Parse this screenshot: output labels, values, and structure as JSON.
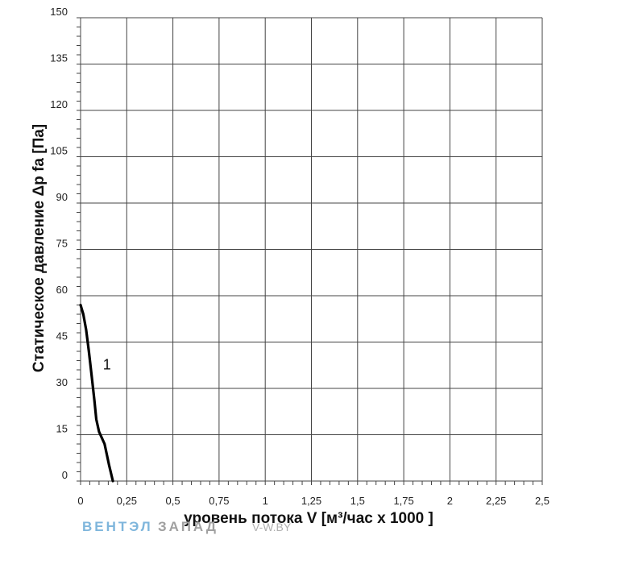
{
  "chart_data": {
    "type": "line",
    "title": "",
    "xlabel": "уровень потока  V [м³/час х 1000 ]",
    "ylabel": "Статическое давление  Δp fa [Па]",
    "xlim": [
      0,
      2.5
    ],
    "ylim": [
      0,
      150
    ],
    "x_ticks": [
      0,
      0.25,
      0.5,
      0.75,
      1,
      1.25,
      1.5,
      1.75,
      2,
      2.25,
      2.5
    ],
    "x_tick_labels": [
      "0",
      "0,25",
      "0,5",
      "0,75",
      "1",
      "1,25",
      "1,5",
      "1,75",
      "2",
      "2,25",
      "2,5"
    ],
    "y_ticks": [
      0,
      15,
      30,
      45,
      60,
      75,
      90,
      105,
      120,
      135,
      150
    ],
    "y_tick_labels": [
      "0",
      "15",
      "30",
      "45",
      "60",
      "75",
      "90",
      "105",
      "120",
      "135",
      "150"
    ],
    "grid": true,
    "series": [
      {
        "name": "1",
        "x": [
          0.0,
          0.015,
          0.03,
          0.045,
          0.06,
          0.075,
          0.085,
          0.1,
          0.13,
          0.155,
          0.175
        ],
        "y": [
          57,
          54,
          49,
          42,
          34,
          26,
          20,
          16,
          12,
          5,
          0
        ]
      }
    ]
  },
  "watermark": {
    "part1": "ВЕНТЭЛ",
    "part2": "ЗАПАД",
    "site": "V-W.BY"
  },
  "colors": {
    "grid": "#444444",
    "curve": "#000000",
    "watermark_blue": "#7fb6dc",
    "watermark_gray": "#a0a0a0"
  }
}
